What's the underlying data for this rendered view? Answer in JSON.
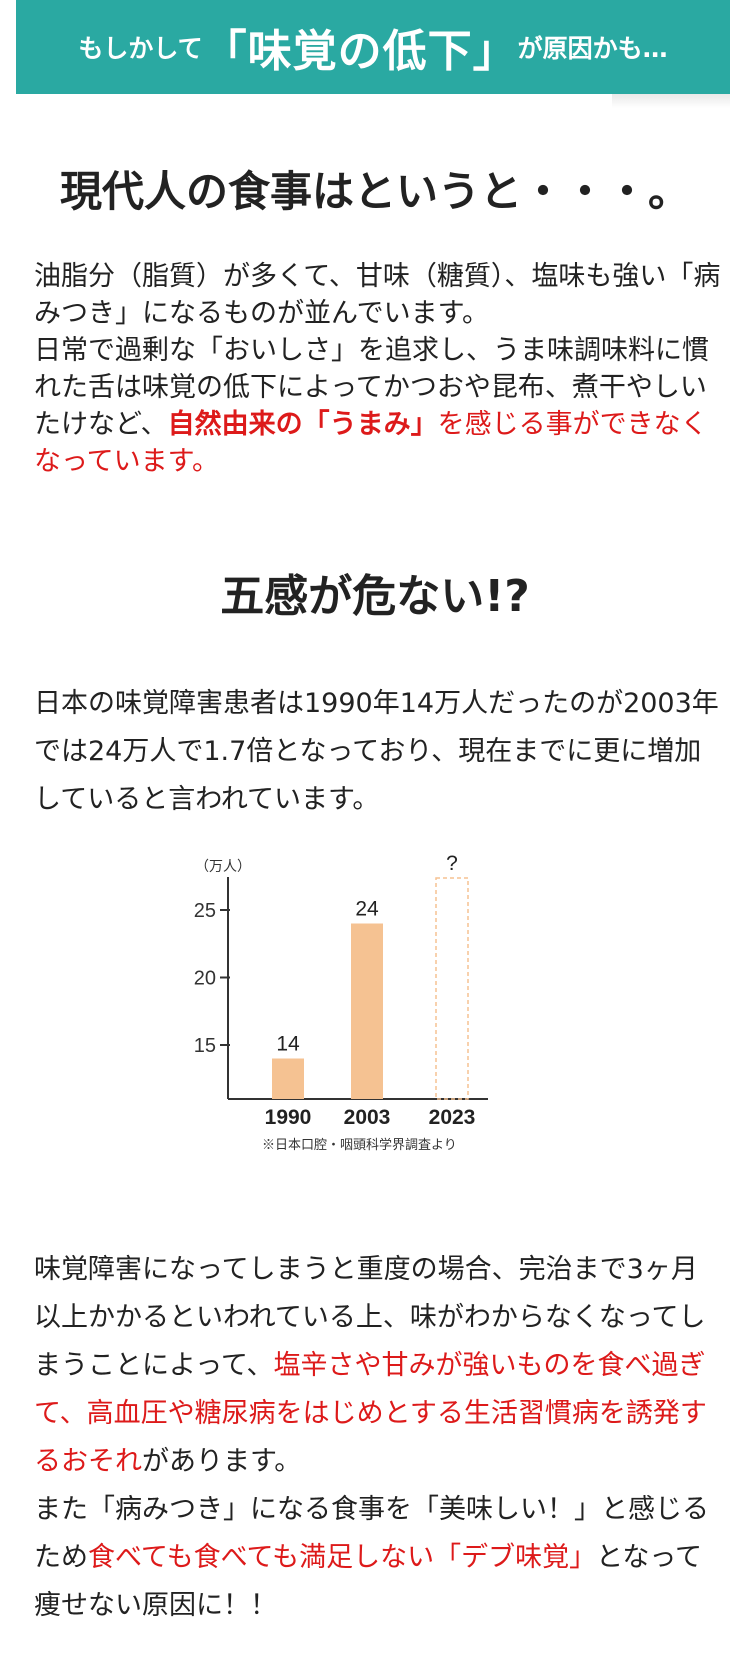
{
  "banner": {
    "prefix": "もしかして",
    "highlight": "「味覚の低下」",
    "suffix": "が原因かも…"
  },
  "heading1": "現代人の食事はというと・・・。",
  "para1": {
    "segments": [
      {
        "text": "油脂分（脂質）が多くて、甘味（糖質）、塩味も強い「病みつき」になるものが並んでいます。",
        "style": "normal"
      },
      {
        "text": "\n",
        "style": "br"
      },
      {
        "text": "日常で過剰な「おいしさ」を追求し、うま味調味料に慣れた舌は味覚の低下によってかつおや昆布、煮干やしいたけなど、",
        "style": "normal"
      },
      {
        "text": "自然由来の「うまみ」",
        "style": "red-bold"
      },
      {
        "text": "を感じる事ができなくなっています。",
        "style": "red"
      }
    ]
  },
  "heading2": "五感が危ない!?",
  "para2": {
    "segments": [
      {
        "text": "日本の味覚障害患者は1990年14万人だったのが2003年では24万人で1.7倍となっており、現在までに更に増加していると言われています。",
        "style": "normal"
      }
    ]
  },
  "chart_data": {
    "type": "bar",
    "categories": [
      "1990",
      "2003",
      "2023"
    ],
    "values": [
      14,
      24,
      null
    ],
    "value_labels": [
      "14",
      "24",
      "?"
    ],
    "unit_label": "（万人）",
    "yticks": [
      15,
      20,
      25
    ],
    "ylim": [
      11,
      27
    ],
    "bar_color": "#f5c292",
    "unknown_bar_style": "dashed-outline",
    "source_note": "※日本口腔・咽頭科学界調査より"
  },
  "para3": {
    "segments": [
      {
        "text": "味覚障害になってしまうと重度の場合、完治まで3ヶ月以上かかるといわれている上、味がわからなくなってしまうことによって、",
        "style": "normal"
      },
      {
        "text": "塩辛さや甘みが強いものを食べ過ぎて、高血圧や糖尿病をはじめとする生活習慣病を誘発するおそれ",
        "style": "red"
      },
      {
        "text": "があります。",
        "style": "normal"
      },
      {
        "text": "\n",
        "style": "br"
      },
      {
        "text": "また「病みつき」になる食事を「美味しい！」と感じるため",
        "style": "normal"
      },
      {
        "text": "食べても食べても満足しない「デブ味覚」",
        "style": "red"
      },
      {
        "text": "となって痩せない原因に！！",
        "style": "normal"
      }
    ]
  },
  "colors": {
    "banner": "#2aa9a2",
    "accent_red": "#dd1a1a",
    "bar": "#f5c292",
    "text": "#222222"
  }
}
